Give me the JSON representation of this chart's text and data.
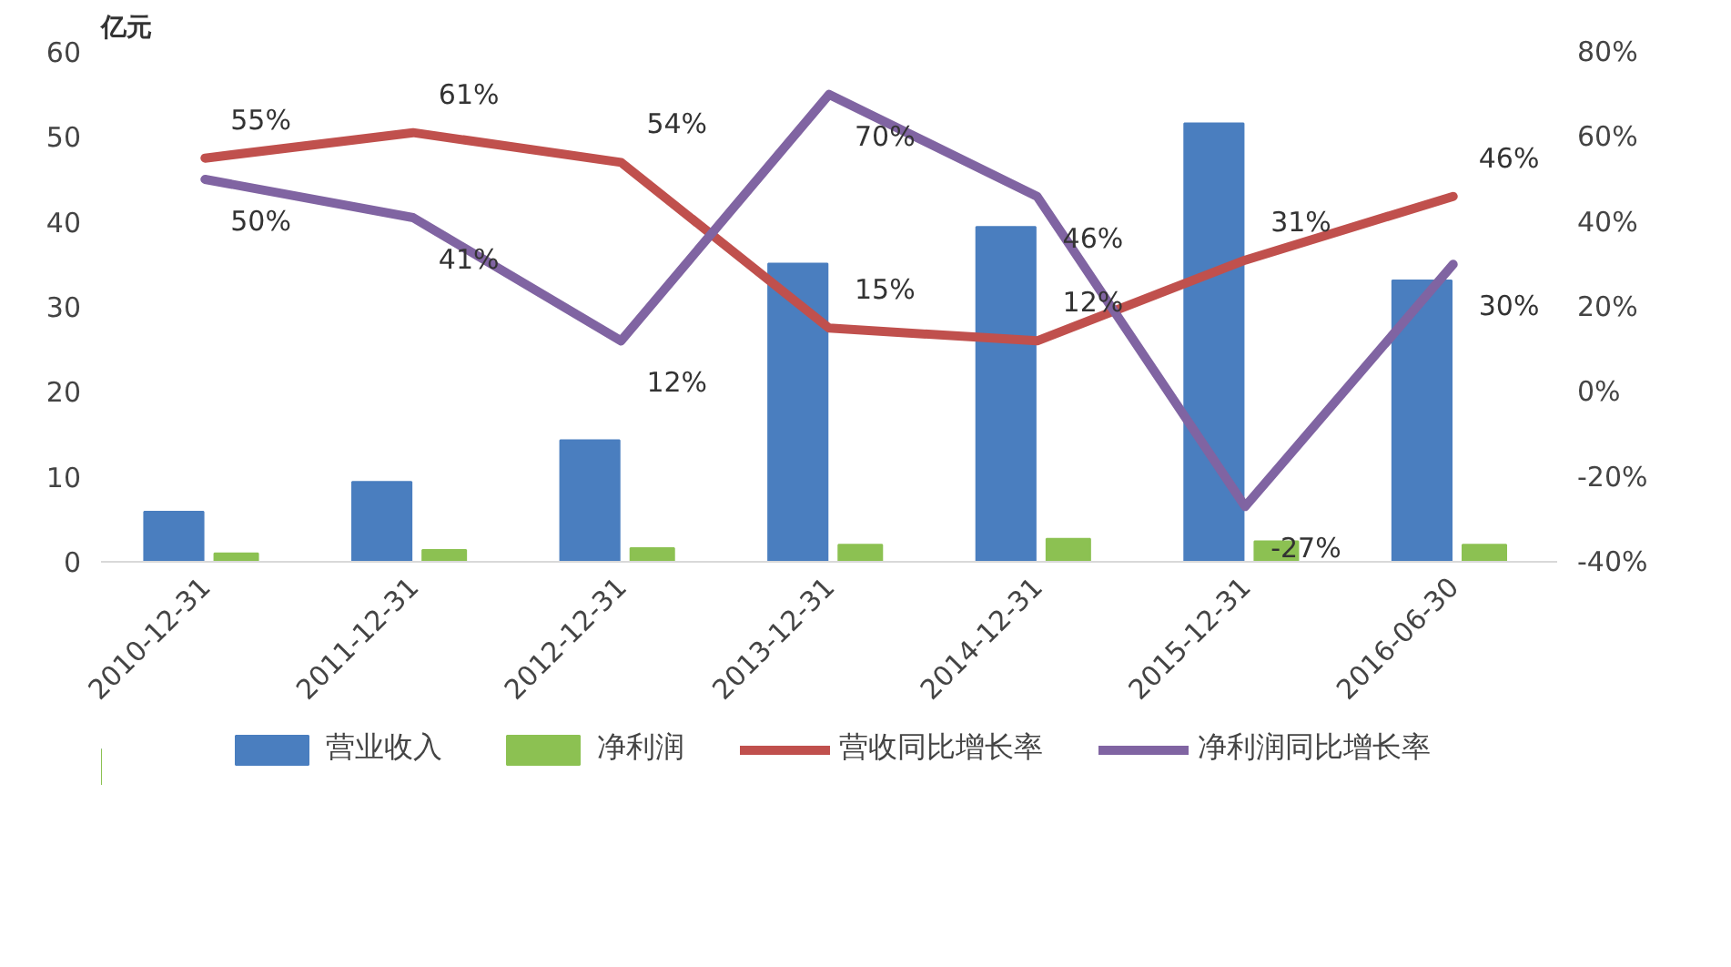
{
  "chart_data": {
    "type": "bar",
    "ylabel": "亿元",
    "categories": [
      "2010-12-31",
      "2011-12-31",
      "2012-12-31",
      "2013-12-31",
      "2014-12-31",
      "2015-12-31",
      "2016-06-30"
    ],
    "series": [
      {
        "name": "营业收入",
        "color": "#4a7ebf",
        "values": [
          5.9,
          9.4,
          14.3,
          35.1,
          39.4,
          51.6,
          33.1
        ]
      },
      {
        "name": "净利润",
        "color": "#8cc152",
        "values": [
          1.0,
          1.4,
          1.6,
          2.0,
          2.7,
          2.4,
          2.0
        ]
      },
      {
        "name": "营收同比增长率",
        "type": "line",
        "axis": "y2",
        "color": "#c0504d",
        "values": [
          55,
          61,
          54,
          15,
          12,
          31,
          46
        ],
        "value_labels": [
          "55%",
          "61%",
          "54%",
          "15%",
          "12%",
          "31%",
          "46%"
        ]
      },
      {
        "name": "净利润同比增长率",
        "type": "line",
        "axis": "y2",
        "color": "#8064a2",
        "values": [
          50,
          41,
          12,
          70,
          46,
          -27,
          30
        ],
        "value_labels": [
          "50%",
          "41%",
          "12%",
          "70%",
          "46%",
          "-27%",
          "30%"
        ]
      }
    ],
    "ylim": [
      0,
      60
    ],
    "yticks": [
      0,
      10,
      20,
      30,
      40,
      50,
      60
    ],
    "y2lim": [
      -40,
      80
    ],
    "y2ticks": [
      {
        "value": -40,
        "label": "-40%"
      },
      {
        "value": -20,
        "label": "-20%"
      },
      {
        "value": 0,
        "label": "0%"
      },
      {
        "value": 20,
        "label": "20%"
      },
      {
        "value": 40,
        "label": "40%"
      },
      {
        "value": 60,
        "label": "60%"
      },
      {
        "value": 80,
        "label": "80%"
      }
    ],
    "grid": false,
    "legend": "bottom",
    "marker": "none",
    "line_style": "solid"
  }
}
